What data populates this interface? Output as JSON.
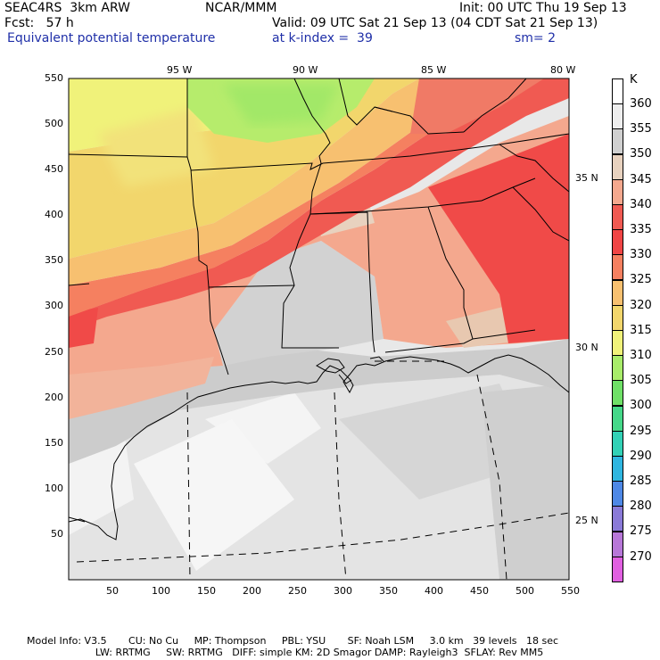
{
  "header": {
    "project": "SEAC4RS  3km ARW",
    "center": "NCAR/MMM",
    "init": "Init: 00 UTC Thu 19 Sep 13",
    "fcst": "Fcst:   57 h",
    "valid": "Valid: 09 UTC Sat 21 Sep 13 (04 CDT Sat 21 Sep 13)",
    "field": "Equivalent potential temperature",
    "level": "at k-index =  39",
    "smooth": "sm= 2"
  },
  "map": {
    "lon_labels": [
      "95 W",
      "90 W",
      "85 W",
      "80 W"
    ],
    "lat_labels": [
      "35 N",
      "30 N",
      "25 N"
    ],
    "y_ticks": [
      "550",
      "500",
      "450",
      "400",
      "350",
      "300",
      "250",
      "200",
      "150",
      "100",
      "50"
    ],
    "x_ticks": [
      "50",
      "100",
      "150",
      "200",
      "250",
      "300",
      "350",
      "400",
      "450",
      "500",
      "550"
    ],
    "grid_range": [
      0,
      550
    ]
  },
  "legend": {
    "unit": "K",
    "levels": [
      {
        "label": "360",
        "color": "#ffffff"
      },
      {
        "label": "355",
        "color": "#eeeeee"
      },
      {
        "label": "350",
        "color": "#d0d0d0"
      },
      {
        "label": "345",
        "color": "#e8d2bf"
      },
      {
        "label": "340",
        "color": "#f4a88e"
      },
      {
        "label": "335",
        "color": "#f05a52"
      },
      {
        "label": "330",
        "color": "#f04545"
      },
      {
        "label": "325",
        "color": "#f58060"
      },
      {
        "label": "320",
        "color": "#f7c070"
      },
      {
        "label": "315",
        "color": "#f2d66c"
      },
      {
        "label": "310",
        "color": "#f0f27a"
      },
      {
        "label": "305",
        "color": "#a8ec6a"
      },
      {
        "label": "300",
        "color": "#6fe067"
      },
      {
        "label": "295",
        "color": "#45d889"
      },
      {
        "label": "290",
        "color": "#32d1b6"
      },
      {
        "label": "285",
        "color": "#2fb6e0"
      },
      {
        "label": "280",
        "color": "#4e88e6"
      },
      {
        "label": "275",
        "color": "#8a7ad8"
      },
      {
        "label": "270",
        "color": "#b777d8"
      },
      {
        "label": "",
        "color": "#e060e0"
      }
    ]
  },
  "footer": {
    "line1": "Model Info: V3.5       CU: No Cu     MP: Thompson     PBL: YSU       SF: Noah LSM     3.0 km   39 levels   18 sec",
    "line2": "                      LW: RRTMG     SW: RRTMG   DIFF: simple KM: 2D Smagor DAMP: Rayleigh3  SFLAY: Rev MM5"
  }
}
